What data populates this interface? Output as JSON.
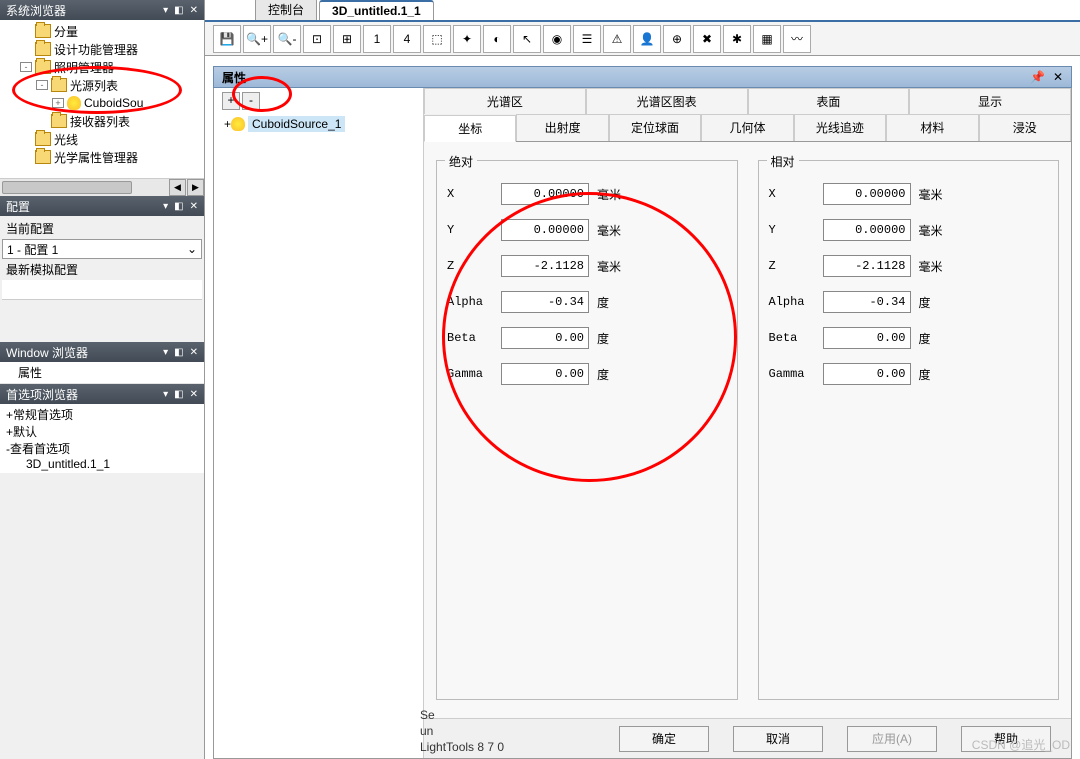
{
  "left": {
    "sysBrowser": {
      "title": "系统浏览器",
      "pin": "▼",
      "close": "✕",
      "auto": "◧"
    },
    "tree": [
      {
        "ind": 1,
        "exp": null,
        "icon": "folder",
        "label": "分量"
      },
      {
        "ind": 1,
        "exp": null,
        "icon": "folder",
        "label": "设计功能管理器"
      },
      {
        "ind": 1,
        "exp": "-",
        "icon": "folder",
        "label": "照明管理器"
      },
      {
        "ind": 2,
        "exp": "-",
        "icon": "folder",
        "label": "光源列表"
      },
      {
        "ind": 3,
        "exp": "+",
        "icon": "bulb",
        "label": "CuboidSou"
      },
      {
        "ind": 2,
        "exp": null,
        "icon": "folder",
        "label": "接收器列表"
      },
      {
        "ind": 1,
        "exp": null,
        "icon": "folder",
        "label": "光线"
      },
      {
        "ind": 1,
        "exp": null,
        "icon": "folder",
        "label": "光学属性管理器"
      }
    ],
    "config": {
      "title": "配置",
      "curLabel": "当前配置",
      "curValue": "1 - 配置 1",
      "lastSim": "最新模拟配置"
    },
    "winBrowser": {
      "title": "Window 浏览器",
      "item": "属性"
    },
    "prefBrowser": {
      "title": "首选项浏览器",
      "items": [
        {
          "exp": "+",
          "label": "常规首选项"
        },
        {
          "exp": "+",
          "label": "默认"
        },
        {
          "exp": "-",
          "label": "查看首选项"
        },
        {
          "exp": null,
          "label": "3D_untitled.1_1",
          "ind": 1
        }
      ]
    }
  },
  "tabs": {
    "console": "控制台",
    "active": "3D_untitled.1_1"
  },
  "toolbarIcons": [
    "save",
    "zoom-in",
    "zoom-out",
    "zoom-fit",
    "zoom-all",
    "n1",
    "n4",
    "cube",
    "axes",
    "sphere",
    "arrow",
    "lens",
    "list",
    "warn",
    "person",
    "target",
    "bug",
    "bug2",
    "layer",
    "wave"
  ],
  "prop": {
    "title": "属性",
    "pin": "📌",
    "close": "✕",
    "leftTree": {
      "item": "CuboidSource_1"
    },
    "tabsTop": [
      "光谱区",
      "光谱区图表",
      "表面",
      "显示"
    ],
    "tabsBot": [
      "坐标",
      "出射度",
      "定位球面",
      "几何体",
      "光线追迹",
      "材料",
      "浸没"
    ],
    "activeTab": "坐标",
    "abs": {
      "legend": "绝对",
      "rows": [
        {
          "l": "X",
          "v": "0.00000",
          "u": "毫米"
        },
        {
          "l": "Y",
          "v": "0.00000",
          "u": "毫米"
        },
        {
          "l": "Z",
          "v": "-2.1128",
          "u": "毫米"
        },
        {
          "l": "Alpha",
          "v": "-0.34",
          "u": "度"
        },
        {
          "l": "Beta",
          "v": "0.00",
          "u": "度"
        },
        {
          "l": "Gamma",
          "v": "0.00",
          "u": "度"
        }
      ]
    },
    "rel": {
      "legend": "相对",
      "rows": [
        {
          "l": "X",
          "v": "0.00000",
          "u": "毫米"
        },
        {
          "l": "Y",
          "v": "0.00000",
          "u": "毫米"
        },
        {
          "l": "Z",
          "v": "-2.1128",
          "u": "毫米"
        },
        {
          "l": "Alpha",
          "v": "-0.34",
          "u": "度"
        },
        {
          "l": "Beta",
          "v": "0.00",
          "u": "度"
        },
        {
          "l": "Gamma",
          "v": "0.00",
          "u": "度"
        }
      ]
    },
    "buttons": {
      "ok": "确定",
      "cancel": "取消",
      "apply": "应用(A)",
      "help": "帮助"
    }
  },
  "footer": {
    "l1": "Se",
    "l2": "un",
    "l3": "LightTools 8 7 0"
  },
  "watermark": "CSDN @追光_OD"
}
